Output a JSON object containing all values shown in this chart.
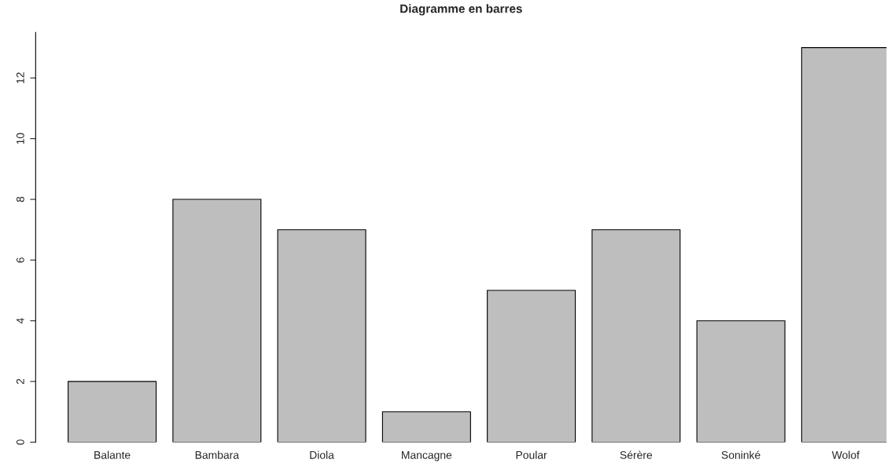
{
  "chart_data": {
    "type": "bar",
    "title": "Diagramme en barres",
    "categories": [
      "Balante",
      "Bambara",
      "Diola",
      "Mancagne",
      "Poular",
      "Sérère",
      "Soninké",
      "Wolof"
    ],
    "values": [
      2,
      8,
      7,
      1,
      5,
      7,
      4,
      13
    ],
    "color": "#bebebe",
    "ylim": [
      0,
      13.5
    ],
    "yticks": [
      0,
      2,
      4,
      6,
      8,
      10,
      12
    ],
    "grid": false
  }
}
